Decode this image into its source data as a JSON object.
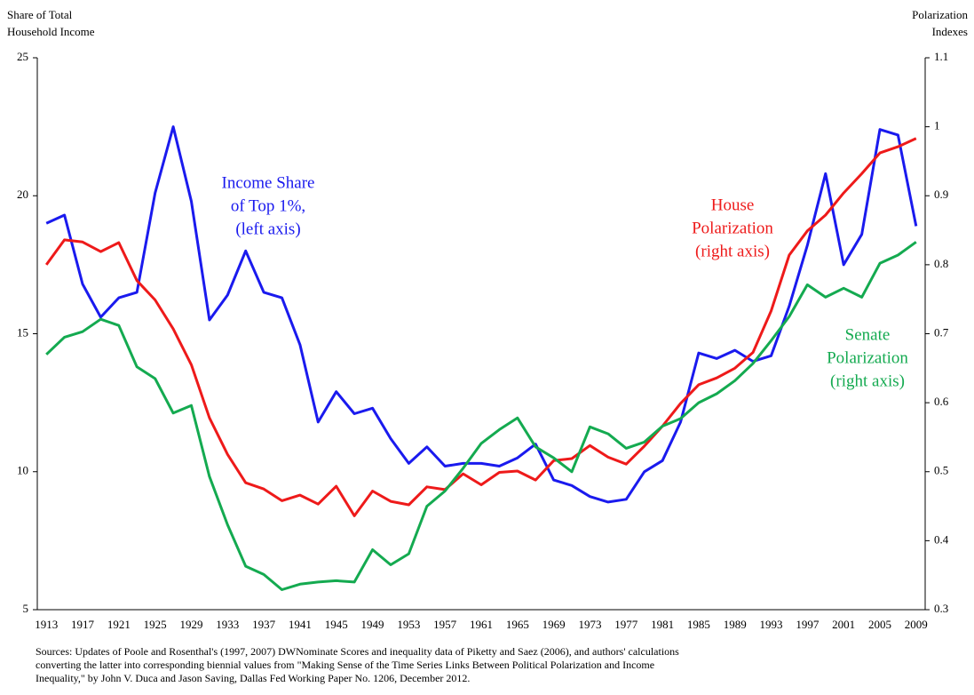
{
  "chart_data": {
    "type": "line",
    "ylabel": [
      "Share of Total",
      "Household Income"
    ],
    "y2label": [
      "Polarization",
      "Indexes"
    ],
    "categories": [
      "1913",
      null,
      "1917",
      null,
      "1921",
      null,
      "1925",
      null,
      "1929",
      null,
      "1933",
      null,
      "1937",
      null,
      "1941",
      null,
      "1945",
      null,
      "1949",
      null,
      "1953",
      null,
      "1957",
      null,
      "1961",
      null,
      "1965",
      null,
      "1969",
      null,
      "1973",
      null,
      "1977",
      null,
      "1981",
      null,
      "1985",
      null,
      "1989",
      null,
      "1993",
      null,
      "1997",
      null,
      "2001",
      null,
      "2005",
      null,
      "2009"
    ],
    "ylim": [
      5,
      25
    ],
    "yticks": [
      5,
      10,
      15,
      20,
      25
    ],
    "y2lim": [
      0.3,
      1.1
    ],
    "y2ticks": [
      0.3,
      0.4,
      0.5,
      0.6,
      0.7,
      0.8,
      0.9,
      1,
      1.1
    ],
    "series": [
      {
        "name": "Income Share of Top 1%",
        "color": "#1a1aee",
        "axis": "y",
        "values": [
          19.0,
          19.3,
          16.8,
          15.6,
          16.3,
          16.5,
          20.1,
          22.5,
          19.8,
          15.5,
          16.4,
          18.0,
          16.5,
          16.3,
          14.6,
          11.8,
          12.9,
          12.1,
          12.3,
          11.2,
          10.3,
          10.9,
          10.2,
          10.3,
          10.3,
          10.2,
          10.5,
          11.0,
          9.7,
          9.5,
          9.1,
          8.9,
          9.0,
          10.0,
          10.4,
          11.8,
          14.3,
          14.1,
          14.4,
          14.0,
          14.2,
          16.0,
          18.2,
          20.8,
          17.5,
          18.6,
          22.4,
          22.2,
          18.9
        ]
      },
      {
        "name": "House Polarization",
        "color": "#ee1a1a",
        "axis": "y2",
        "values": [
          0.8,
          0.836,
          0.833,
          0.819,
          0.832,
          0.777,
          0.749,
          0.707,
          0.655,
          0.578,
          0.525,
          0.484,
          0.475,
          0.458,
          0.466,
          0.453,
          0.479,
          0.436,
          0.472,
          0.457,
          0.452,
          0.478,
          0.474,
          0.497,
          0.481,
          0.499,
          0.501,
          0.488,
          0.516,
          0.519,
          0.538,
          0.521,
          0.511,
          0.537,
          0.566,
          0.599,
          0.626,
          0.636,
          0.65,
          0.673,
          0.733,
          0.814,
          0.849,
          0.872,
          0.904,
          0.932,
          0.962,
          0.971,
          0.983
        ]
      },
      {
        "name": "Senate Polarization",
        "color": "#14aa50",
        "axis": "y2",
        "values": [
          0.67,
          0.695,
          0.703,
          0.721,
          0.712,
          0.652,
          0.635,
          0.585,
          0.596,
          0.493,
          0.423,
          0.363,
          0.351,
          0.329,
          0.337,
          0.34,
          0.342,
          0.34,
          0.387,
          0.365,
          0.381,
          0.45,
          0.472,
          0.505,
          0.541,
          0.561,
          0.578,
          0.536,
          0.52,
          0.5,
          0.565,
          0.555,
          0.534,
          0.543,
          0.566,
          0.577,
          0.6,
          0.613,
          0.632,
          0.657,
          0.69,
          0.725,
          0.771,
          0.753,
          0.766,
          0.753,
          0.802,
          0.814,
          0.833
        ]
      }
    ],
    "annotations": [
      {
        "lines": [
          "Income Share",
          "of Top 1%,",
          "(left axis)"
        ],
        "color": "#1a1aee"
      },
      {
        "lines": [
          "House",
          "Polarization",
          "(right axis)"
        ],
        "color": "#ee1a1a"
      },
      {
        "lines": [
          "Senate",
          "Polarization",
          "(right axis)"
        ],
        "color": "#14aa50"
      }
    ],
    "source": [
      "Sources: Updates of Poole and Rosenthal's (1997, 2007) DWNominate Scores and inequality data of Piketty and Saez (2006), and authors' calculations",
      "converting the latter into corresponding biennial values from \"Making Sense of the Time Series Links Between Political Polarization and Income",
      "Inequality,\" by John V. Duca and Jason Saving, Dallas Fed Working Paper No. 1206, December 2012."
    ]
  }
}
